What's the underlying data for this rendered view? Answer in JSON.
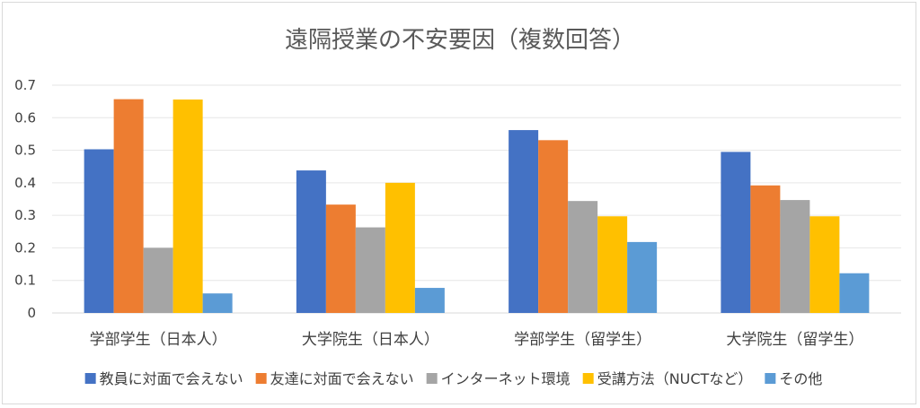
{
  "chart_data": {
    "type": "bar",
    "title": "遠隔授業の不安要因（複数回答）",
    "xlabel": "",
    "ylabel": "",
    "ylim": [
      0,
      0.7
    ],
    "yticks": [
      "0",
      "0.1",
      "0.2",
      "0.3",
      "0.4",
      "0.5",
      "0.6",
      "0.7"
    ],
    "grid": true,
    "legend_position": "bottom",
    "categories": [
      "学部学生（日本人）",
      "大学院生（日本人）",
      "学部学生（留学生）",
      "大学院生（留学生）"
    ],
    "series": [
      {
        "name": "教員に対面で会えない",
        "color": "#4472c4",
        "values": [
          0.503,
          0.438,
          0.562,
          0.495
        ]
      },
      {
        "name": "友達に対面で会えない",
        "color": "#ed7d31",
        "values": [
          0.657,
          0.333,
          0.531,
          0.392
        ]
      },
      {
        "name": "インターネット環境",
        "color": "#a5a5a5",
        "values": [
          0.2,
          0.263,
          0.344,
          0.347
        ]
      },
      {
        "name": "受講方法（NUCTなど）",
        "color": "#ffc000",
        "values": [
          0.656,
          0.4,
          0.297,
          0.297
        ]
      },
      {
        "name": "その他",
        "color": "#5b9bd5",
        "values": [
          0.06,
          0.077,
          0.218,
          0.122
        ]
      }
    ]
  }
}
